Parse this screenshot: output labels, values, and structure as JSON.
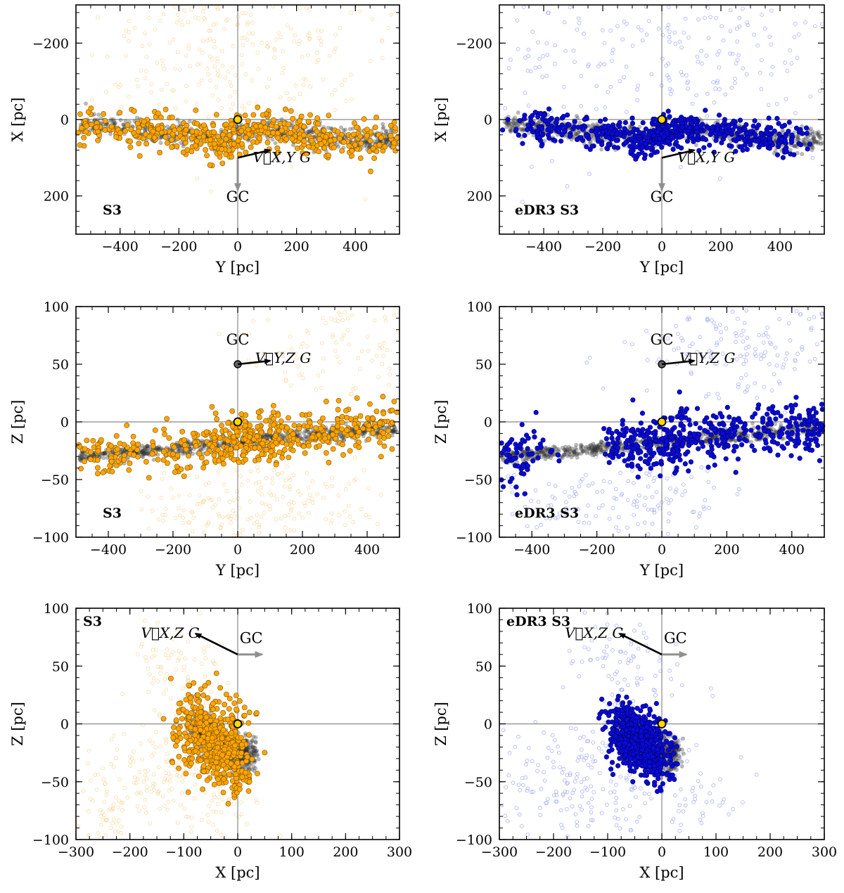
{
  "figure": {
    "colors": {
      "s3_fill": "#ffa500",
      "s3_edge": "#7a5200",
      "s3_faint": "#f8dca8",
      "edr3_fill": "#0a0ad8",
      "edr3_edge": "#000066",
      "edr3_faint": "#aab0f8",
      "ridge": "#333333",
      "reference_lines": "#888888",
      "sun_marker": "#ffd700",
      "gc_arrow": "#909090",
      "velocity_arrow": "#000000"
    },
    "annotations": {
      "gc": "GC",
      "vel_xy": "V⃗X,Y G",
      "vel_yz": "V⃗Y,Z G",
      "vel_xz": "V⃗X,Z G"
    }
  },
  "chart_data": [
    {
      "type": "scatter",
      "panel": "top-left",
      "tag": "S3",
      "tag_position": "bottom-left",
      "sample": "s3",
      "xlabel": "Y [pc]",
      "ylabel": "X [pc]",
      "xlim": [
        -550,
        550
      ],
      "ylim": [
        300,
        -300
      ],
      "xticks": [
        -400,
        -200,
        0,
        200,
        400
      ],
      "xtick_labels": [
        "−400",
        "−200",
        "0",
        "200",
        "400"
      ],
      "yticks": [
        -200,
        0,
        200
      ],
      "ytick_labels": [
        "−200",
        "0",
        "200"
      ],
      "ridge": {
        "x": [
          -530,
          -400,
          -250,
          -150,
          -50,
          0,
          80,
          200,
          300,
          420,
          550
        ],
        "y": [
          10,
          20,
          32,
          42,
          55,
          30,
          25,
          35,
          48,
          55,
          52
        ],
        "spread": [
          12,
          14
        ]
      },
      "points": {
        "x": [
          -530,
          -300,
          -100,
          0,
          80,
          200,
          300,
          480
        ],
        "y": [
          18,
          32,
          55,
          40,
          28,
          38,
          50,
          62
        ],
        "spread": [
          70,
          26
        ]
      },
      "faint": {
        "x": [
          -300,
          -150,
          -50,
          0,
          50,
          200
        ],
        "y": [
          -100,
          -160,
          -230,
          -250,
          -220,
          -120
        ],
        "spread": [
          200,
          110
        ]
      },
      "gc_arrow": {
        "from": [
          0,
          100
        ],
        "to": [
          0,
          185
        ],
        "label_at": [
          0,
          215
        ]
      },
      "velocity": {
        "from": [
          0,
          100
        ],
        "to": [
          110,
          80
        ],
        "label_at": [
          150,
          100
        ],
        "label_key": "vel_xy"
      }
    },
    {
      "type": "scatter",
      "panel": "top-right",
      "tag": "eDR3 S3",
      "tag_position": "bottom-left",
      "sample": "edr3",
      "xlabel": "Y [pc]",
      "ylabel": "X [pc]",
      "xlim": [
        -550,
        550
      ],
      "ylim": [
        300,
        -300
      ],
      "xticks": [
        -400,
        -200,
        0,
        200,
        400
      ],
      "xtick_labels": [
        "−400",
        "−200",
        "0",
        "200",
        "400"
      ],
      "yticks": [
        -200,
        0,
        200
      ],
      "ytick_labels": [
        "−200",
        "0",
        "200"
      ],
      "ridge": {
        "x": [
          -530,
          -400,
          -250,
          -150,
          -50,
          0,
          80,
          200,
          300,
          420,
          550
        ],
        "y": [
          10,
          20,
          32,
          42,
          55,
          30,
          25,
          35,
          48,
          55,
          52
        ],
        "spread": [
          12,
          14
        ]
      },
      "points": {
        "x": [
          -400,
          -200,
          -50,
          0,
          100,
          250,
          400
        ],
        "y": [
          20,
          35,
          55,
          35,
          25,
          35,
          52
        ],
        "spread": [
          60,
          20
        ]
      },
      "faint": {
        "x": [
          -400,
          -200,
          0,
          200,
          400
        ],
        "y": [
          -150,
          -200,
          -250,
          -200,
          -150
        ],
        "spread": [
          250,
          130
        ]
      },
      "gc_arrow": {
        "from": [
          0,
          100
        ],
        "to": [
          0,
          185
        ],
        "label_at": [
          0,
          215
        ]
      },
      "velocity": {
        "from": [
          0,
          100
        ],
        "to": [
          110,
          80
        ],
        "label_at": [
          150,
          100
        ],
        "label_key": "vel_xy"
      }
    },
    {
      "type": "scatter",
      "panel": "middle-left",
      "tag": "S3",
      "tag_position": "bottom-left",
      "sample": "s3",
      "xlabel": "Y [pc]",
      "ylabel": "Z [pc]",
      "xlim": [
        -500,
        500
      ],
      "ylim": [
        -100,
        100
      ],
      "xticks": [
        -400,
        -200,
        0,
        200,
        400
      ],
      "xtick_labels": [
        "−400",
        "−200",
        "0",
        "200",
        "400"
      ],
      "yticks": [
        -100,
        -50,
        0,
        50,
        100
      ],
      "ytick_labels": [
        "−100",
        "−50",
        "0",
        "50",
        "100"
      ],
      "ridge": {
        "x": [
          -500,
          -400,
          -200,
          -100,
          0,
          100,
          200,
          300,
          400,
          500
        ],
        "y": [
          -30,
          -28,
          -23,
          -20,
          -17,
          -15,
          -12,
          -10,
          -8,
          -5
        ],
        "spread": [
          12,
          3
        ]
      },
      "points": {
        "x": [
          -400,
          -200,
          -50,
          0,
          50,
          150,
          300,
          450
        ],
        "y": [
          -28,
          -23,
          -20,
          -15,
          -15,
          -12,
          -5,
          5
        ],
        "spread": [
          55,
          10
        ]
      },
      "faint": {
        "x": [
          -100,
          0,
          100,
          200,
          400,
          300
        ],
        "y": [
          -70,
          -80,
          -60,
          60,
          70,
          -70
        ],
        "spread": [
          110,
          22
        ]
      },
      "gc_arrow": null,
      "velocity": {
        "from": [
          0,
          50
        ],
        "to": [
          100,
          53
        ],
        "label_at": [
          140,
          55
        ],
        "label_key": "vel_yz"
      },
      "gc_marker": {
        "at": [
          0,
          50
        ],
        "label_at": [
          0,
          67
        ]
      }
    },
    {
      "type": "scatter",
      "panel": "middle-right",
      "tag": "eDR3 S3",
      "tag_position": "bottom-left",
      "sample": "edr3",
      "xlabel": "Y [pc]",
      "ylabel": "Z [pc]",
      "xlim": [
        -500,
        500
      ],
      "ylim": [
        -100,
        100
      ],
      "xticks": [
        -400,
        -200,
        0,
        200,
        400
      ],
      "xtick_labels": [
        "−400",
        "−200",
        "0",
        "200",
        "400"
      ],
      "yticks": [
        -100,
        -50,
        0,
        50,
        100
      ],
      "ytick_labels": [
        "−100",
        "−50",
        "0",
        "50",
        "100"
      ],
      "ridge": {
        "x": [
          -500,
          -400,
          -200,
          -100,
          0,
          100,
          200,
          300,
          400,
          500
        ],
        "y": [
          -30,
          -28,
          -23,
          -20,
          -17,
          -15,
          -12,
          -10,
          -8,
          -5
        ],
        "spread": [
          12,
          3
        ]
      },
      "points": {
        "x": [
          -450,
          -100,
          0,
          80,
          200,
          350,
          480
        ],
        "y": [
          -30,
          -22,
          -18,
          -15,
          -8,
          -5,
          0
        ],
        "spread": [
          45,
          11
        ]
      },
      "faint": {
        "x": [
          -300,
          -100,
          0,
          100,
          250,
          400
        ],
        "y": [
          -70,
          -80,
          -60,
          70,
          50,
          80
        ],
        "spread": [
          120,
          20
        ]
      },
      "gc_arrow": null,
      "velocity": {
        "from": [
          0,
          50
        ],
        "to": [
          100,
          53
        ],
        "label_at": [
          140,
          55
        ],
        "label_key": "vel_yz"
      },
      "gc_marker": {
        "at": [
          0,
          50
        ],
        "label_at": [
          0,
          67
        ]
      }
    },
    {
      "type": "scatter",
      "panel": "bottom-left",
      "tag": "S3",
      "tag_position": "top-left",
      "sample": "s3",
      "xlabel": "X [pc]",
      "ylabel": "Z [pc]",
      "xlim": [
        -300,
        300
      ],
      "ylim": [
        -100,
        100
      ],
      "xticks": [
        -300,
        -200,
        -100,
        0,
        100,
        200,
        300
      ],
      "xtick_labels": [
        "−300",
        "−200",
        "−100",
        "0",
        "100",
        "200",
        "300"
      ],
      "yticks": [
        -100,
        -50,
        0,
        50,
        100
      ],
      "ytick_labels": [
        "−100",
        "−50",
        "0",
        "50",
        "100"
      ],
      "ridge": {
        "x": [
          -80,
          -60,
          -40,
          -20,
          0,
          20,
          30
        ],
        "y": [
          -5,
          -10,
          -15,
          -22,
          -28,
          -28,
          -26
        ],
        "spread": [
          20,
          8
        ]
      },
      "points": {
        "x": [
          -80,
          -60,
          -40,
          -20,
          -10
        ],
        "y": [
          -5,
          -10,
          -15,
          -25,
          -20
        ],
        "spread": [
          22,
          18
        ]
      },
      "faint": {
        "x": [
          -250,
          -200,
          -150,
          -100,
          -50,
          -120,
          -100
        ],
        "y": [
          -80,
          -60,
          -40,
          -30,
          -70,
          40,
          60
        ],
        "spread": [
          45,
          20
        ]
      },
      "gc_arrow": {
        "from": [
          0,
          60
        ],
        "to": [
          45,
          60
        ],
        "label_at": [
          25,
          70
        ]
      },
      "velocity": {
        "from": [
          0,
          60
        ],
        "to": [
          -78,
          78
        ],
        "label_at": [
          -125,
          78
        ],
        "label_key": "vel_xz"
      }
    },
    {
      "type": "scatter",
      "panel": "bottom-right",
      "tag": "eDR3 S3",
      "tag_position": "top-left",
      "sample": "edr3",
      "xlabel": "X [pc]",
      "ylabel": "Z [pc]",
      "xlim": [
        -300,
        300
      ],
      "ylim": [
        -100,
        100
      ],
      "xticks": [
        -300,
        -200,
        -100,
        0,
        100,
        200,
        300
      ],
      "xtick_labels": [
        "−300",
        "−200",
        "−100",
        "0",
        "100",
        "200",
        "300"
      ],
      "yticks": [
        -100,
        -50,
        0,
        50,
        100
      ],
      "ytick_labels": [
        "−100",
        "−50",
        "0",
        "50",
        "100"
      ],
      "ridge": {
        "x": [
          -80,
          -60,
          -40,
          -20,
          0,
          20,
          30
        ],
        "y": [
          -5,
          -10,
          -15,
          -22,
          -28,
          -28,
          -26
        ],
        "spread": [
          20,
          8
        ]
      },
      "points": {
        "x": [
          -70,
          -50,
          -30,
          -15
        ],
        "y": [
          -10,
          -15,
          -18,
          -20
        ],
        "spread": [
          18,
          14
        ]
      },
      "faint": {
        "x": [
          -250,
          -200,
          -150,
          -100,
          -50,
          50,
          -80
        ],
        "y": [
          -60,
          -45,
          -35,
          -70,
          40,
          -60,
          60
        ],
        "spread": [
          50,
          22
        ]
      },
      "gc_arrow": {
        "from": [
          0,
          60
        ],
        "to": [
          45,
          60
        ],
        "label_at": [
          25,
          70
        ]
      },
      "velocity": {
        "from": [
          0,
          60
        ],
        "to": [
          -78,
          78
        ],
        "label_at": [
          -125,
          78
        ],
        "label_key": "vel_xz"
      }
    }
  ]
}
